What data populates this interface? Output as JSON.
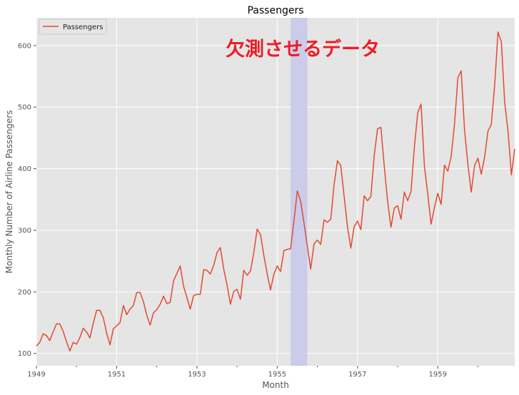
{
  "chart_data": {
    "type": "line",
    "title": "Passengers",
    "xlabel": "Month",
    "ylabel": "Monthly Number of Airline Passengers",
    "annotation": "欠測させるデータ",
    "x_ticks": [
      "1949",
      "1951",
      "1953",
      "1955",
      "1957",
      "1959"
    ],
    "y_ticks": [
      100,
      200,
      300,
      400,
      500,
      600
    ],
    "xlim": [
      "1949-01",
      "1960-12"
    ],
    "ylim": [
      80,
      645
    ],
    "grid": true,
    "legend_position": "upper-left",
    "highlight_span": [
      "1955-05",
      "1955-10"
    ],
    "series": [
      {
        "name": "Passengers",
        "x_start": "1949-01",
        "frequency": "monthly",
        "values": [
          112,
          118,
          132,
          129,
          121,
          135,
          148,
          148,
          136,
          119,
          104,
          118,
          115,
          126,
          141,
          135,
          125,
          149,
          170,
          170,
          158,
          133,
          114,
          140,
          145,
          150,
          178,
          163,
          172,
          178,
          199,
          199,
          184,
          162,
          146,
          166,
          171,
          180,
          193,
          181,
          183,
          218,
          230,
          242,
          209,
          191,
          172,
          194,
          196,
          196,
          236,
          235,
          229,
          243,
          264,
          272,
          237,
          211,
          180,
          201,
          204,
          188,
          235,
          227,
          234,
          264,
          302,
          293,
          259,
          229,
          203,
          229,
          242,
          233,
          267,
          269,
          270,
          315,
          364,
          347,
          312,
          274,
          237,
          278,
          284,
          277,
          317,
          313,
          318,
          374,
          413,
          405,
          355,
          306,
          271,
          306,
          315,
          301,
          356,
          348,
          355,
          422,
          465,
          467,
          404,
          347,
          305,
          336,
          340,
          318,
          362,
          348,
          363,
          435,
          491,
          505,
          404,
          359,
          310,
          337,
          360,
          342,
          406,
          396,
          420,
          472,
          548,
          559,
          463,
          407,
          362,
          405,
          417,
          391,
          419,
          461,
          472,
          535,
          622,
          606,
          508,
          461,
          390,
          432
        ]
      }
    ],
    "colors": {
      "line": "#e24a33",
      "plot_background": "#e5e5e5",
      "grid": "#ffffff",
      "highlight": "#c5c8eb",
      "annotation": "#ee1c25"
    }
  }
}
